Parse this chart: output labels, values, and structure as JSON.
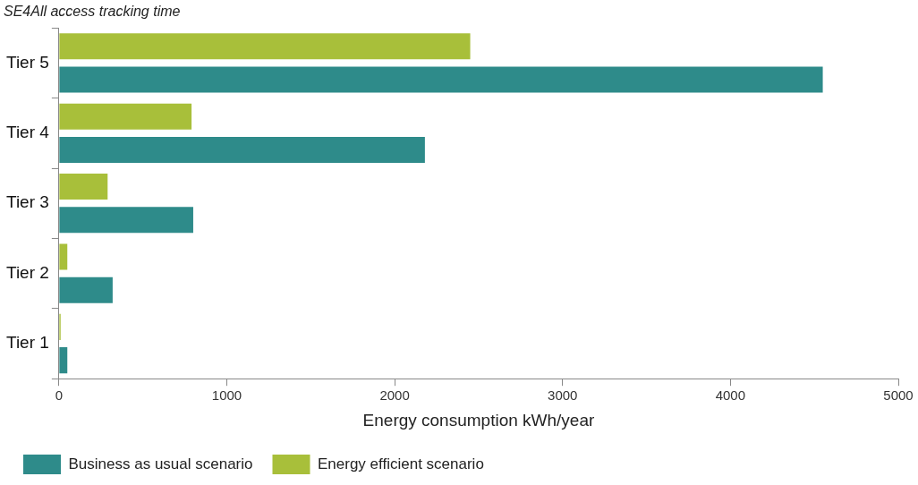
{
  "chart_data": {
    "type": "bar",
    "orientation": "horizontal",
    "title": "SE4All access tracking time",
    "xlabel": "Energy consumption kWh/year",
    "categories": [
      "Tier 5",
      "Tier 4",
      "Tier 3",
      "Tier 2",
      "Tier 1"
    ],
    "series": [
      {
        "name": "Business as usual scenario",
        "color": "#2e8b8a",
        "values": [
          4550,
          2180,
          800,
          320,
          50
        ]
      },
      {
        "name": "Energy efficient scenario",
        "color": "#a8bf3a",
        "values": [
          2450,
          790,
          290,
          50,
          10
        ]
      }
    ],
    "xlim": [
      0,
      5000
    ],
    "xticks": [
      0,
      1000,
      2000,
      3000,
      4000,
      5000
    ],
    "grid": false,
    "legend": "bottom left"
  }
}
